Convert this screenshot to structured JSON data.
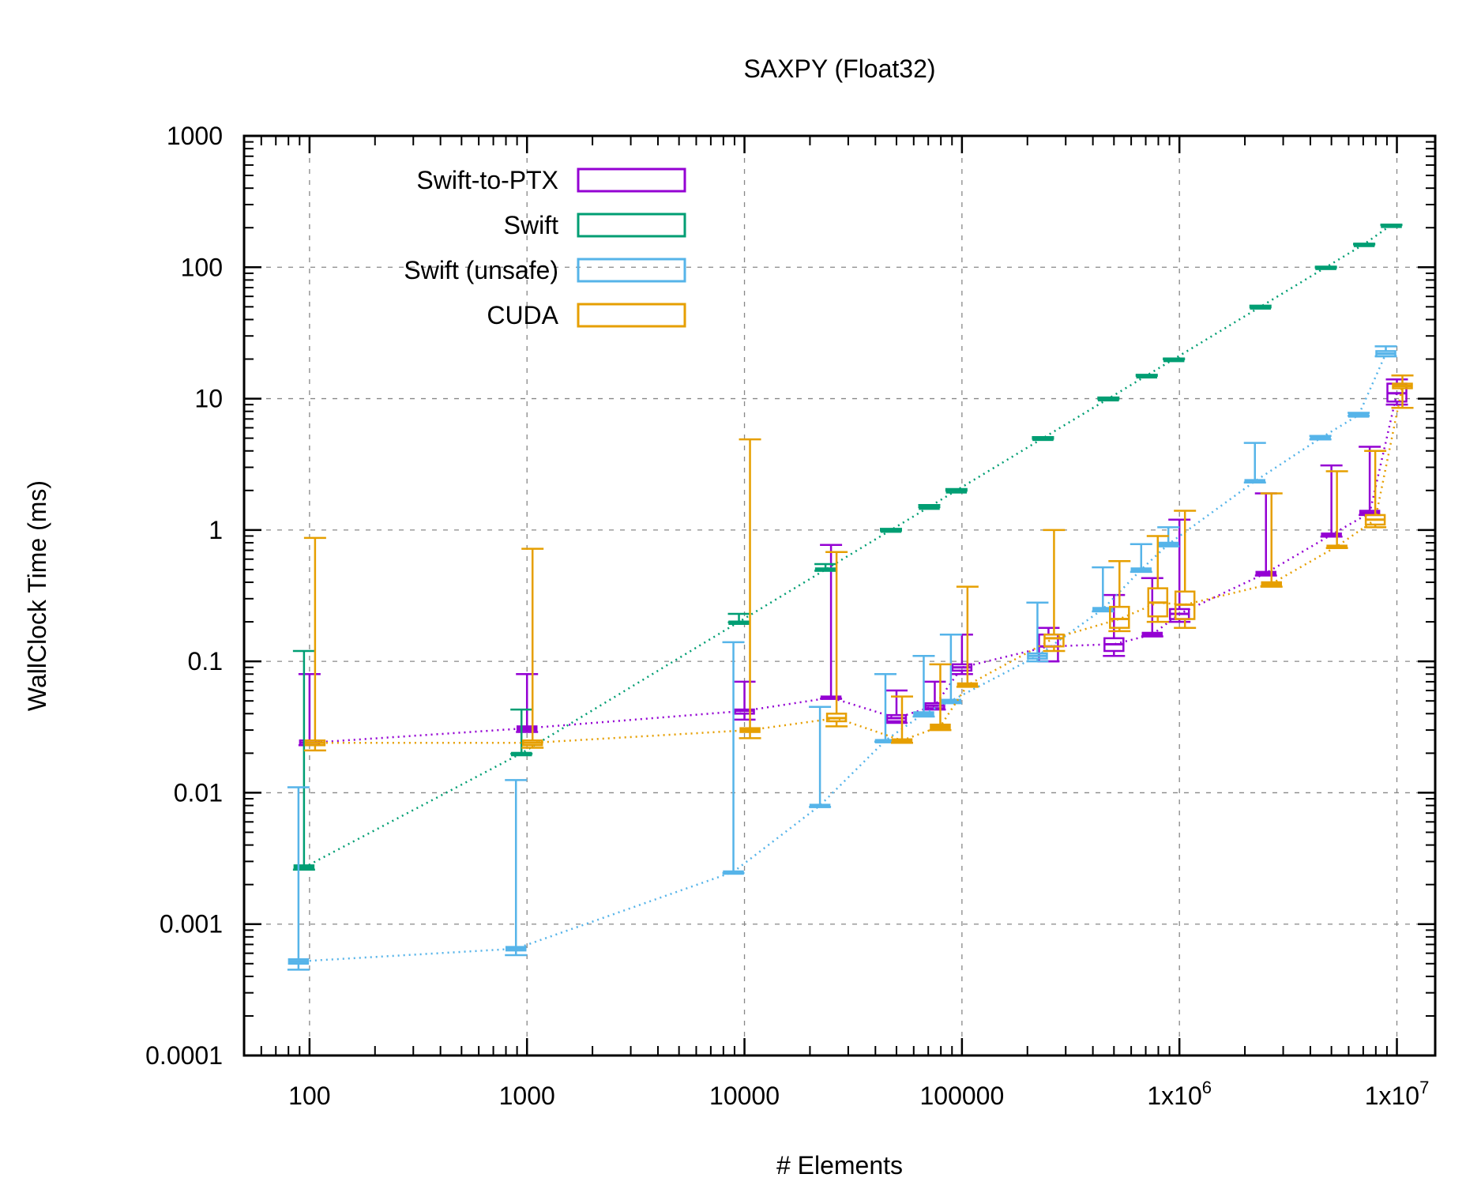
{
  "chart_data": {
    "type": "boxplot-errorbar-line",
    "title": "SAXPY (Float32)",
    "xlabel": "# Elements",
    "ylabel": "WallClock Time (ms)",
    "xscale": "log",
    "yscale": "log",
    "xlim": [
      50,
      15000000
    ],
    "ylim": [
      0.0001,
      1000
    ],
    "grid": true,
    "legend_position": "top-left",
    "x_ticks": [
      {
        "value": 100,
        "label": "100",
        "sup": ""
      },
      {
        "value": 1000,
        "label": "1000",
        "sup": ""
      },
      {
        "value": 10000,
        "label": "10000",
        "sup": ""
      },
      {
        "value": 100000,
        "label": "100000",
        "sup": ""
      },
      {
        "value": 1000000,
        "label": "1x10",
        "sup": "6"
      },
      {
        "value": 10000000,
        "label": "1x10",
        "sup": "7"
      }
    ],
    "y_ticks": [
      {
        "value": 0.0001,
        "label": "0.0001"
      },
      {
        "value": 0.001,
        "label": "0.001"
      },
      {
        "value": 0.01,
        "label": "0.01"
      },
      {
        "value": 0.1,
        "label": "0.1"
      },
      {
        "value": 1,
        "label": "1"
      },
      {
        "value": 10,
        "label": "10"
      },
      {
        "value": 100,
        "label": "100"
      },
      {
        "value": 1000,
        "label": "1000"
      }
    ],
    "x": [
      100,
      1000,
      10000,
      25000,
      50000,
      75000,
      100000,
      250000,
      500000,
      750000,
      1000000,
      2500000,
      5000000,
      7500000,
      10000000
    ],
    "series": [
      {
        "name": "Swift-to-PTX",
        "color": "#9400d3",
        "offset": 0,
        "median": [
          0.024,
          0.031,
          0.042,
          0.053,
          0.037,
          0.046,
          0.09,
          0.13,
          0.135,
          0.16,
          0.23,
          0.47,
          0.92,
          1.35,
          11
        ],
        "q1": [
          0.023,
          0.03,
          0.04,
          0.052,
          0.035,
          0.044,
          0.085,
          0.1,
          0.12,
          0.155,
          0.21,
          0.46,
          0.9,
          1.33,
          9.5
        ],
        "q3": [
          0.025,
          0.032,
          0.043,
          0.054,
          0.039,
          0.048,
          0.095,
          0.16,
          0.15,
          0.165,
          0.25,
          0.48,
          0.94,
          1.4,
          13
        ],
        "min": [
          0.023,
          0.029,
          0.036,
          0.052,
          0.034,
          0.043,
          0.08,
          0.1,
          0.11,
          0.155,
          0.2,
          0.45,
          0.89,
          1.3,
          9.0
        ],
        "max": [
          0.08,
          0.08,
          0.07,
          0.77,
          0.06,
          0.07,
          0.16,
          0.18,
          0.32,
          0.43,
          1.2,
          1.9,
          3.1,
          4.3,
          14
        ]
      },
      {
        "name": "Swift",
        "color": "#009e73",
        "offset": -1,
        "median": [
          0.0027,
          0.02,
          0.2,
          0.5,
          1.0,
          1.5,
          2.0,
          5.0,
          10.0,
          15.0,
          20.0,
          50.0,
          100.0,
          150.0,
          210.0
        ],
        "q1": [
          0.0026,
          0.0199,
          0.199,
          0.49,
          0.99,
          1.49,
          1.99,
          4.95,
          9.9,
          14.9,
          19.9,
          49.5,
          99,
          149,
          209
        ],
        "q3": [
          0.0028,
          0.0201,
          0.201,
          0.51,
          1.01,
          1.51,
          2.01,
          5.05,
          10.1,
          15.1,
          20.1,
          50.5,
          101,
          151,
          211
        ],
        "min": [
          0.0026,
          0.0198,
          0.198,
          0.49,
          0.99,
          1.49,
          1.99,
          4.95,
          9.9,
          14.9,
          19.9,
          49.5,
          99,
          149,
          209
        ],
        "max": [
          0.12,
          0.043,
          0.23,
          0.55,
          1.02,
          1.55,
          2.05,
          5.1,
          10.2,
          15.2,
          20.2,
          51,
          101,
          151,
          211
        ]
      },
      {
        "name": "Swift (unsafe)",
        "color": "#56b4e9",
        "offset": -2,
        "median": [
          0.00052,
          0.00065,
          0.0025,
          0.008,
          0.025,
          0.04,
          0.05,
          0.11,
          0.25,
          0.5,
          0.78,
          2.35,
          5.0,
          7.5,
          22
        ],
        "q1": [
          0.0005,
          0.00063,
          0.00248,
          0.0079,
          0.0248,
          0.039,
          0.049,
          0.105,
          0.245,
          0.49,
          0.76,
          2.3,
          4.9,
          7.4,
          21
        ],
        "q3": [
          0.00054,
          0.00067,
          0.00252,
          0.0081,
          0.0252,
          0.041,
          0.051,
          0.115,
          0.255,
          0.51,
          0.8,
          2.4,
          5.1,
          7.6,
          23
        ],
        "min": [
          0.00045,
          0.00058,
          0.00245,
          0.0078,
          0.0245,
          0.038,
          0.048,
          0.1,
          0.24,
          0.48,
          0.75,
          2.3,
          4.9,
          7.4,
          21
        ],
        "max": [
          0.011,
          0.0125,
          0.14,
          0.045,
          0.08,
          0.11,
          0.16,
          0.28,
          0.52,
          0.78,
          1.05,
          4.6,
          5.2,
          7.8,
          25
        ]
      },
      {
        "name": "CUDA",
        "color": "#e69f00",
        "offset": 1,
        "median": [
          0.024,
          0.024,
          0.03,
          0.037,
          0.025,
          0.032,
          0.066,
          0.15,
          0.21,
          0.28,
          0.27,
          0.39,
          0.75,
          1.2,
          12.5
        ],
        "q1": [
          0.023,
          0.023,
          0.029,
          0.035,
          0.0245,
          0.031,
          0.065,
          0.13,
          0.18,
          0.22,
          0.21,
          0.38,
          0.74,
          1.1,
          12
        ],
        "q3": [
          0.025,
          0.025,
          0.031,
          0.04,
          0.0255,
          0.033,
          0.068,
          0.16,
          0.26,
          0.36,
          0.34,
          0.4,
          0.76,
          1.3,
          13
        ],
        "min": [
          0.021,
          0.022,
          0.026,
          0.032,
          0.024,
          0.03,
          0.064,
          0.12,
          0.17,
          0.2,
          0.18,
          0.37,
          0.73,
          1.05,
          8.5
        ],
        "max": [
          0.87,
          0.72,
          4.9,
          0.68,
          0.054,
          0.095,
          0.37,
          1.0,
          0.58,
          0.9,
          1.4,
          1.9,
          2.8,
          4.0,
          15
        ]
      }
    ]
  }
}
